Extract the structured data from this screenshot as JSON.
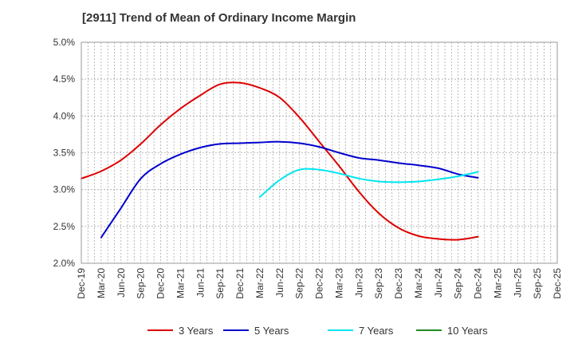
{
  "chart_data": {
    "type": "line",
    "title": "[2911]  Trend of Mean of Ordinary Income Margin",
    "xlabel": "",
    "ylabel": "",
    "x_ticks": [
      "Dec-19",
      "Mar-20",
      "Jun-20",
      "Sep-20",
      "Dec-20",
      "Mar-21",
      "Jun-21",
      "Sep-21",
      "Dec-21",
      "Mar-22",
      "Jun-22",
      "Sep-22",
      "Dec-22",
      "Mar-23",
      "Jun-23",
      "Sep-23",
      "Dec-23",
      "Mar-24",
      "Jun-24",
      "Sep-24",
      "Dec-24",
      "Mar-25",
      "Jun-25",
      "Sep-25",
      "Dec-25"
    ],
    "y_ticks": [
      "2.0%",
      "2.5%",
      "3.0%",
      "3.5%",
      "4.0%",
      "4.5%",
      "5.0%"
    ],
    "ylim": [
      2.0,
      5.0
    ],
    "grid": true,
    "legend_position": "bottom",
    "series": [
      {
        "name": "3 Years",
        "color": "#dd0000",
        "points": [
          [
            "Dec-19",
            3.15
          ],
          [
            "Mar-20",
            3.25
          ],
          [
            "Jun-20",
            3.4
          ],
          [
            "Sep-20",
            3.62
          ],
          [
            "Dec-20",
            3.88
          ],
          [
            "Mar-21",
            4.1
          ],
          [
            "Jun-21",
            4.28
          ],
          [
            "Sep-21",
            4.43
          ],
          [
            "Dec-21",
            4.45
          ],
          [
            "Mar-22",
            4.38
          ],
          [
            "Jun-22",
            4.25
          ],
          [
            "Sep-22",
            3.98
          ],
          [
            "Dec-22",
            3.65
          ],
          [
            "Mar-23",
            3.32
          ],
          [
            "Jun-23",
            2.97
          ],
          [
            "Sep-23",
            2.68
          ],
          [
            "Dec-23",
            2.48
          ],
          [
            "Mar-24",
            2.37
          ],
          [
            "Jun-24",
            2.33
          ],
          [
            "Sep-24",
            2.32
          ],
          [
            "Dec-24",
            2.36
          ]
        ]
      },
      {
        "name": "5 Years",
        "color": "#0000cc",
        "points": [
          [
            "Mar-20",
            2.35
          ],
          [
            "Jun-20",
            2.75
          ],
          [
            "Sep-20",
            3.15
          ],
          [
            "Dec-20",
            3.35
          ],
          [
            "Mar-21",
            3.48
          ],
          [
            "Jun-21",
            3.57
          ],
          [
            "Sep-21",
            3.62
          ],
          [
            "Dec-21",
            3.63
          ],
          [
            "Mar-22",
            3.64
          ],
          [
            "Jun-22",
            3.65
          ],
          [
            "Sep-22",
            3.63
          ],
          [
            "Dec-22",
            3.58
          ],
          [
            "Mar-23",
            3.5
          ],
          [
            "Jun-23",
            3.43
          ],
          [
            "Sep-23",
            3.4
          ],
          [
            "Dec-23",
            3.36
          ],
          [
            "Mar-24",
            3.33
          ],
          [
            "Jun-24",
            3.29
          ],
          [
            "Sep-24",
            3.21
          ],
          [
            "Dec-24",
            3.16
          ]
        ]
      },
      {
        "name": "7 Years",
        "color": "#00e5ee",
        "points": [
          [
            "Mar-22",
            2.9
          ],
          [
            "Jun-22",
            3.13
          ],
          [
            "Sep-22",
            3.27
          ],
          [
            "Dec-22",
            3.27
          ],
          [
            "Mar-23",
            3.22
          ],
          [
            "Jun-23",
            3.15
          ],
          [
            "Sep-23",
            3.11
          ],
          [
            "Dec-23",
            3.1
          ],
          [
            "Mar-24",
            3.11
          ],
          [
            "Jun-24",
            3.14
          ],
          [
            "Sep-24",
            3.18
          ],
          [
            "Dec-24",
            3.24
          ]
        ]
      },
      {
        "name": "10 Years",
        "color": "#228b22",
        "points": []
      }
    ]
  }
}
